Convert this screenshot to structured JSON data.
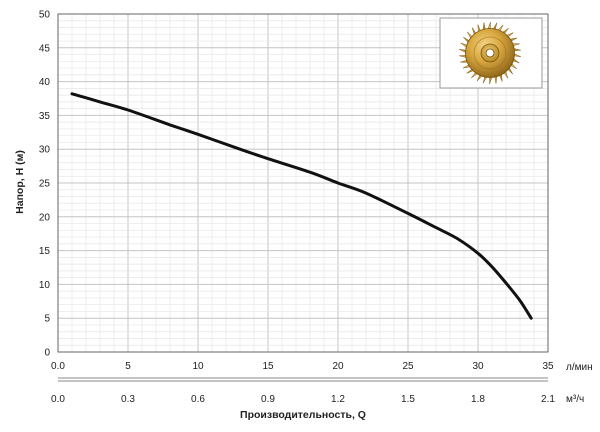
{
  "chart_data": {
    "type": "line",
    "title": "",
    "ylabel": "Напор, H (м)",
    "xlabel": "Производительность, Q",
    "ylim": [
      0,
      50
    ],
    "yticks": [
      0,
      5,
      10,
      15,
      20,
      25,
      30,
      35,
      40,
      45,
      50
    ],
    "x_primary": {
      "unit": "л/мин",
      "lim": [
        0,
        35
      ],
      "ticks": [
        0,
        5,
        10,
        15,
        20,
        25,
        30,
        35
      ],
      "tick_labels": [
        "0.0",
        "5",
        "10",
        "15",
        "20",
        "25",
        "30",
        "35"
      ]
    },
    "x_secondary": {
      "unit": "м³/ч",
      "lim": [
        0,
        2.1
      ],
      "ticks": [
        0,
        0.3,
        0.6,
        0.9,
        1.2,
        1.5,
        1.8,
        2.1
      ],
      "tick_labels": [
        "0.0",
        "0.3",
        "0.6",
        "0.9",
        "1.2",
        "1.5",
        "1.8",
        "2.1"
      ]
    },
    "grid": true,
    "series": [
      {
        "color": "#111111",
        "x": [
          1,
          3,
          5,
          8,
          10,
          13,
          15,
          18,
          20,
          22,
          25,
          27,
          28.5,
          30,
          31,
          32,
          33,
          33.8
        ],
        "y": [
          38.2,
          37,
          35.8,
          33.6,
          32.2,
          30,
          28.6,
          26.6,
          25,
          23.5,
          20.5,
          18.4,
          16.8,
          14.6,
          12.6,
          10.2,
          7.6,
          5
        ]
      }
    ]
  },
  "inset_image": {
    "icon": "brass-impeller-icon"
  },
  "colors": {
    "major_grid": "#c4c4c4",
    "minor_grid": "#e6e6e6",
    "axis": "#666666",
    "curve": "#111111"
  }
}
